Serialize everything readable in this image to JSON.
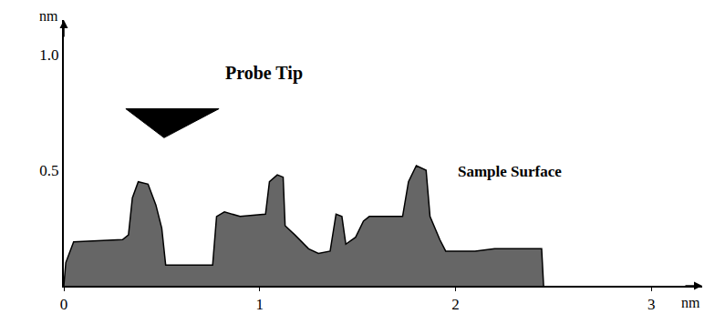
{
  "chart_data": {
    "type": "area",
    "x_label": "nm",
    "y_label": "nm",
    "annotations": [
      {
        "text": "Probe Tip"
      },
      {
        "text": "Sample Surface"
      }
    ],
    "x": [
      0,
      0.01,
      0.05,
      0.3,
      0.33,
      0.35,
      0.38,
      0.43,
      0.47,
      0.5,
      0.52,
      0.76,
      0.78,
      0.82,
      0.9,
      1.03,
      1.05,
      1.09,
      1.12,
      1.13,
      1.18,
      1.25,
      1.3,
      1.36,
      1.39,
      1.42,
      1.44,
      1.49,
      1.53,
      1.56,
      1.73,
      1.76,
      1.8,
      1.85,
      1.87,
      1.92,
      1.95,
      2.1,
      2.2,
      2.44,
      2.45
    ],
    "values": [
      0,
      0.1,
      0.19,
      0.2,
      0.22,
      0.38,
      0.45,
      0.44,
      0.35,
      0.25,
      0.09,
      0.09,
      0.3,
      0.32,
      0.3,
      0.31,
      0.45,
      0.48,
      0.47,
      0.26,
      0.22,
      0.16,
      0.14,
      0.15,
      0.31,
      0.3,
      0.18,
      0.21,
      0.28,
      0.3,
      0.3,
      0.45,
      0.52,
      0.5,
      0.3,
      0.2,
      0.15,
      0.15,
      0.16,
      0.16,
      0
    ],
    "color": "#666666",
    "xlim": [
      0,
      3.26
    ],
    "ylim": [
      0,
      1.15
    ],
    "xticks": [
      0,
      1,
      2,
      3
    ],
    "yticks": [
      0.5,
      {
        "value": 1,
        "label": "1.0"
      }
    ],
    "grid": false
  }
}
